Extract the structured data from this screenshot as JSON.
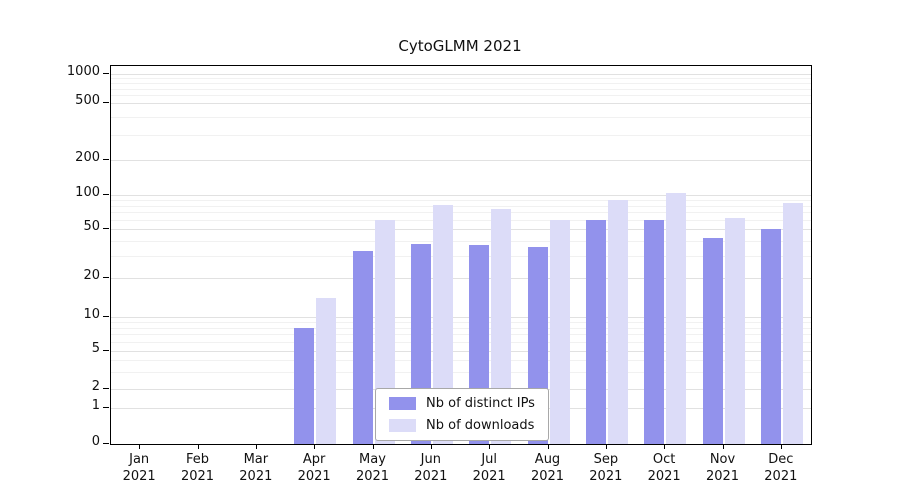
{
  "chart_data": {
    "type": "bar",
    "title": "CytoGLMM 2021",
    "categories": [
      "Jan",
      "Feb",
      "Mar",
      "Apr",
      "May",
      "Jun",
      "Jul",
      "Aug",
      "Sep",
      "Oct",
      "Nov",
      "Dec"
    ],
    "x_year": "2021",
    "series": [
      {
        "name": "Nb of distinct IPs",
        "color": "#9292ec",
        "values": [
          0,
          0,
          0,
          8,
          33,
          38,
          37,
          36,
          60,
          60,
          42,
          50
        ]
      },
      {
        "name": "Nb of downloads",
        "color": "#dcdcf8",
        "values": [
          0,
          0,
          0,
          14,
          60,
          82,
          75,
          60,
          90,
          105,
          62,
          85
        ]
      }
    ],
    "y_ticks": [
      0,
      1,
      2,
      5,
      10,
      20,
      50,
      100,
      200,
      500,
      1000
    ],
    "y_scale": "log",
    "ylim": [
      0,
      1000
    ],
    "grid": true,
    "legend_position": "bottom-center"
  }
}
